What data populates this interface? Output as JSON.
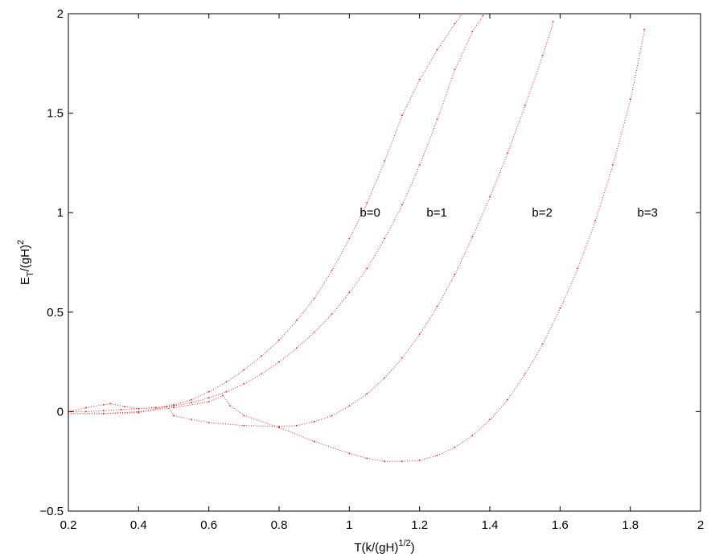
{
  "chart_data": {
    "type": "scatter",
    "title": "",
    "xlabel": {
      "base": "T(k/(gH)",
      "sup": "1/2",
      "tail": ")"
    },
    "ylabel": {
      "main": "E",
      "sub": "T",
      "mid": "/(gH)",
      "sup": "2"
    },
    "xlim": [
      0.2,
      2
    ],
    "ylim": [
      -0.5,
      2
    ],
    "xticks": [
      "0.2",
      "0.4",
      "0.6",
      "0.8",
      "1",
      "1.2",
      "1.4",
      "1.6",
      "1.8",
      "2"
    ],
    "xtick_values": [
      0.2,
      0.4,
      0.6,
      0.8,
      1.0,
      1.2,
      1.4,
      1.6,
      1.8,
      2.0
    ],
    "yticks": [
      "−0.5",
      "0",
      "0.5",
      "1",
      "1.5",
      "2"
    ],
    "ytick_values": [
      -0.5,
      0,
      0.5,
      1.0,
      1.5,
      2.0
    ],
    "grid": false,
    "color": "#ff0000",
    "annotations": [
      {
        "text": "b=0",
        "x": 1.03,
        "y": 1.0
      },
      {
        "text": "b=1",
        "x": 1.22,
        "y": 1.0
      },
      {
        "text": "b=2",
        "x": 1.52,
        "y": 1.0
      },
      {
        "text": "b=3",
        "x": 1.82,
        "y": 1.0
      }
    ],
    "series": [
      {
        "x": [
          0.2,
          0.25,
          0.3,
          0.32,
          0.36,
          0.4,
          0.45,
          0.5,
          0.55,
          0.6,
          0.65,
          0.7,
          0.75,
          0.8,
          0.85,
          0.9,
          0.95,
          1.0,
          1.05,
          1.1,
          1.15,
          1.2,
          1.25,
          1.3,
          1.32
        ],
        "y": [
          0.0,
          0.02,
          0.035,
          0.04,
          0.025,
          0.015,
          0.02,
          0.035,
          0.06,
          0.1,
          0.15,
          0.21,
          0.28,
          0.36,
          0.46,
          0.57,
          0.71,
          0.87,
          1.05,
          1.26,
          1.49,
          1.67,
          1.82,
          1.95,
          2.0
        ]
      },
      {
        "x": [
          0.2,
          0.25,
          0.3,
          0.35,
          0.4,
          0.45,
          0.48,
          0.5,
          0.55,
          0.6,
          0.65,
          0.7,
          0.75,
          0.8,
          0.85,
          0.9,
          0.95,
          1.0,
          1.05,
          1.1,
          1.15,
          1.2,
          1.25,
          1.3,
          1.35,
          1.38
        ],
        "y": [
          0.0,
          0.0,
          0.005,
          0.01,
          0.015,
          0.02,
          0.025,
          0.03,
          0.045,
          0.07,
          0.1,
          0.14,
          0.19,
          0.25,
          0.32,
          0.4,
          0.49,
          0.6,
          0.72,
          0.87,
          1.04,
          1.24,
          1.47,
          1.72,
          1.91,
          1.99
        ]
      },
      {
        "x": [
          0.2,
          0.3,
          0.4,
          0.48,
          0.5,
          0.55,
          0.6,
          0.7,
          0.8,
          0.85,
          0.9,
          0.95,
          1.0,
          1.05,
          1.1,
          1.15,
          1.2,
          1.25,
          1.3,
          1.35,
          1.4,
          1.45,
          1.5,
          1.55,
          1.58
        ],
        "y": [
          -0.01,
          -0.01,
          -0.005,
          0.025,
          -0.02,
          -0.04,
          -0.055,
          -0.07,
          -0.075,
          -0.07,
          -0.05,
          -0.02,
          0.03,
          0.09,
          0.17,
          0.27,
          0.39,
          0.53,
          0.69,
          0.88,
          1.08,
          1.3,
          1.54,
          1.79,
          1.96
        ]
      },
      {
        "x": [
          0.2,
          0.3,
          0.4,
          0.5,
          0.6,
          0.64,
          0.66,
          0.7,
          0.8,
          0.9,
          1.0,
          1.05,
          1.1,
          1.15,
          1.2,
          1.25,
          1.3,
          1.35,
          1.4,
          1.45,
          1.5,
          1.55,
          1.6,
          1.65,
          1.7,
          1.75,
          1.8,
          1.84
        ],
        "y": [
          -0.01,
          -0.01,
          0.0,
          0.02,
          0.05,
          0.08,
          0.03,
          -0.02,
          -0.08,
          -0.15,
          -0.21,
          -0.235,
          -0.25,
          -0.25,
          -0.245,
          -0.22,
          -0.18,
          -0.12,
          -0.04,
          0.06,
          0.19,
          0.34,
          0.52,
          0.72,
          0.96,
          1.24,
          1.57,
          1.92
        ]
      }
    ]
  }
}
